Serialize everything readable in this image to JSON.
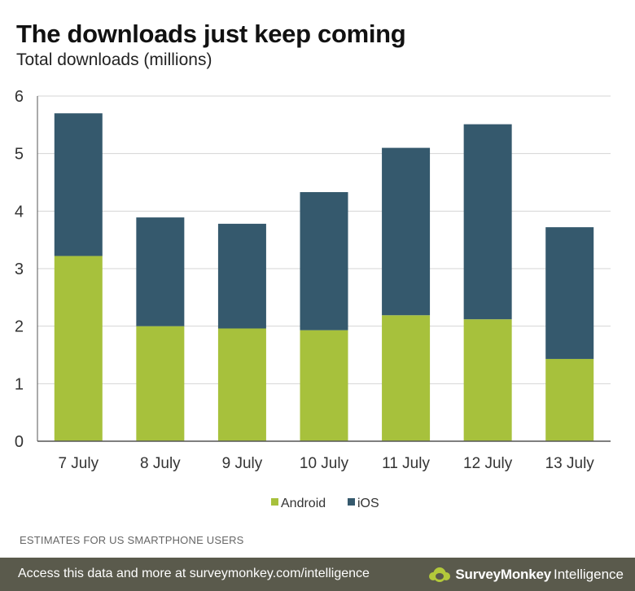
{
  "header": {
    "title": "The downloads just keep coming",
    "subtitle": "Total downloads (millions)"
  },
  "chart_data": {
    "type": "bar",
    "stacked": true,
    "title": "The downloads just keep coming",
    "subtitle": "Total downloads (millions)",
    "categories": [
      "7 July",
      "8 July",
      "9 July",
      "10 July",
      "11 July",
      "12 July",
      "13 July"
    ],
    "series": [
      {
        "name": "Android",
        "color": "#a7c13c",
        "values": [
          3.22,
          2.0,
          1.96,
          1.93,
          2.19,
          2.12,
          1.43
        ]
      },
      {
        "name": "iOS",
        "color": "#35596d",
        "values": [
          2.48,
          1.89,
          1.82,
          2.4,
          2.91,
          3.39,
          2.29
        ]
      }
    ],
    "ylim": [
      0,
      6
    ],
    "yticks": [
      0,
      1,
      2,
      3,
      4,
      5,
      6
    ],
    "grid": true,
    "legend": "bottom-center"
  },
  "note": "ESTIMATES FOR US SMARTPHONE USERS",
  "footer": {
    "text": "Access this data and more at surveymonkey.com/intelligence",
    "brand_name": "SurveyMonkey",
    "brand_sub": "Intelligence",
    "background": "#5a5a4c"
  }
}
